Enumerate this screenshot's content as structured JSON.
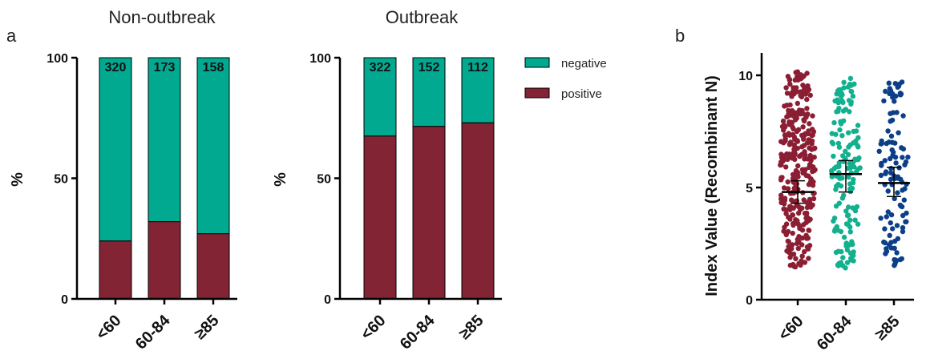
{
  "colors": {
    "negative": "#00a98f",
    "positive": "#822433",
    "dot_lt60": "#8b1e32",
    "dot_60_84": "#12b08e",
    "dot_ge85": "#0c3f88"
  },
  "panel_labels": {
    "a": "a",
    "b": "b"
  },
  "chart_data": [
    {
      "type": "bar",
      "stacked": true,
      "title": "Non-outbreak",
      "ylabel": "%",
      "ylim": [
        0,
        100
      ],
      "yticks": [
        "0",
        "50",
        "100"
      ],
      "categories": [
        "<60",
        "60-84",
        "≥85"
      ],
      "n_labels": [
        "320",
        "173",
        "158"
      ],
      "series": [
        {
          "name": "positive",
          "values": [
            24,
            32,
            27
          ]
        },
        {
          "name": "negative",
          "values": [
            76,
            68,
            73
          ]
        }
      ]
    },
    {
      "type": "bar",
      "stacked": true,
      "title": "Outbreak",
      "ylabel": "%",
      "ylim": [
        0,
        100
      ],
      "yticks": [
        "0",
        "50",
        "100"
      ],
      "categories": [
        "<60",
        "60-84",
        "≥85"
      ],
      "n_labels": [
        "322",
        "152",
        "112"
      ],
      "series": [
        {
          "name": "positive",
          "values": [
            67.5,
            71.5,
            73
          ]
        },
        {
          "name": "negative",
          "values": [
            32.5,
            28.5,
            27
          ]
        }
      ],
      "legend": {
        "placement": "right",
        "entries": [
          "negative",
          "positive"
        ]
      }
    },
    {
      "type": "scatter",
      "ylabel": "Index Value (Recombinant N)",
      "ylim": [
        0,
        11
      ],
      "yticks": [
        "0",
        "5",
        "10"
      ],
      "categories": [
        "<60",
        "60-84",
        "≥85"
      ],
      "groups": [
        {
          "category": "<60",
          "n": 320,
          "range": [
            1.4,
            10.2
          ],
          "median": 4.8,
          "ci": [
            4.3,
            5.3
          ]
        },
        {
          "category": "60-84",
          "n": 152,
          "range": [
            1.4,
            9.9
          ],
          "median": 5.6,
          "ci": [
            4.8,
            6.2
          ]
        },
        {
          "category": "≥85",
          "n": 112,
          "range": [
            1.5,
            10.0
          ],
          "median": 5.2,
          "ci": [
            4.6,
            5.9
          ]
        }
      ]
    }
  ]
}
